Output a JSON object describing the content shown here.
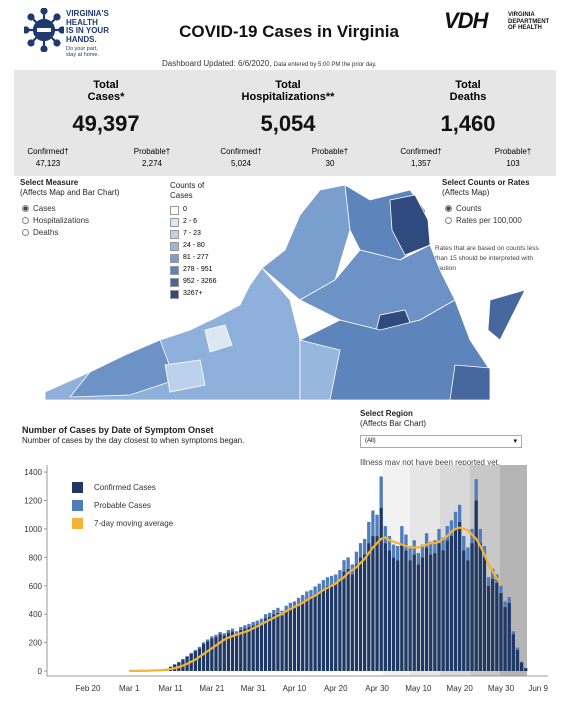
{
  "header": {
    "logo_lines": [
      "VIRGINIA'S",
      "HEALTH",
      "IS IN YOUR",
      "HANDS."
    ],
    "logo_tagline": [
      "Do your part,",
      "stay at home."
    ],
    "title": "COVID-19 Cases in Virginia",
    "vdh_mark": "VDH",
    "vdh_name": [
      "VIRGINIA",
      "DEPARTMENT",
      "OF HEALTH"
    ],
    "updated": "Dashboard Updated: 6/6/2020,",
    "updated_note": "Data entered by 5:00 PM the prior day."
  },
  "stats": [
    {
      "label": [
        "Total",
        "Cases*"
      ],
      "total": "49,397",
      "confirmed_label": "Confirmed†",
      "confirmed": "47,123",
      "probable_label": "Probable†",
      "probable": "2,274"
    },
    {
      "label": [
        "Total",
        "Hospitalizations**"
      ],
      "total": "5,054",
      "confirmed_label": "Confirmed†",
      "confirmed": "5,024",
      "probable_label": "Probable†",
      "probable": "30"
    },
    {
      "label": [
        "Total",
        "Deaths"
      ],
      "total": "1,460",
      "confirmed_label": "Confirmed†",
      "confirmed": "1,357",
      "probable_label": "Probable†",
      "probable": "103"
    }
  ],
  "measure": {
    "title": "Select Measure",
    "subtitle": "(Affects Map and Bar Chart)",
    "options": [
      "Cases",
      "Hospitalizations",
      "Deaths"
    ],
    "selected": 0
  },
  "counts_legend": {
    "title": [
      "Counts of",
      "Cases"
    ],
    "bins": [
      "0",
      "2 - 6",
      "7 - 23",
      "24 - 80",
      "81 - 277",
      "278 - 951",
      "952 - 3266",
      "3267+"
    ],
    "colors": [
      "#ffffff",
      "#dce7f4",
      "#bcd2ec",
      "#98b7de",
      "#7a9fce",
      "#5d84bb",
      "#47689f",
      "#2f4a7c"
    ]
  },
  "rates": {
    "title": "Select Counts or Rates",
    "subtitle": "(Affects Map)",
    "options": [
      "Counts",
      "Rates per 100,000"
    ],
    "selected": 0,
    "note": [
      "Rates that are based on counts less",
      "than 15 should be interpreted with",
      "caution"
    ]
  },
  "region": {
    "title": "Select Region",
    "subtitle": "(Affects Bar Chart)",
    "selected": "(All)",
    "note": "Illness may not have been reported yet."
  },
  "chart_data": {
    "type": "bar",
    "stacked": true,
    "title": "Number of Cases by Date of Symptom Onset",
    "subtitle": "Number of cases by the day closest to when symptoms began.",
    "categories": [
      null,
      null,
      null,
      "Feb 20",
      null,
      null,
      null,
      null,
      null,
      null,
      null,
      null,
      null,
      "Mar 1",
      null,
      null,
      null,
      null,
      null,
      null,
      null,
      null,
      null,
      "Mar 11",
      null,
      null,
      null,
      null,
      null,
      null,
      null,
      null,
      null,
      "Mar 21",
      null,
      null,
      null,
      null,
      null,
      null,
      null,
      null,
      null,
      "Mar 31",
      null,
      null,
      null,
      null,
      null,
      null,
      null,
      null,
      null,
      "Apr 10",
      null,
      null,
      null,
      null,
      null,
      null,
      null,
      null,
      null,
      "Apr 20",
      null,
      null,
      null,
      null,
      null,
      null,
      null,
      null,
      null,
      "Apr 30",
      null,
      null,
      null,
      null,
      null,
      null,
      null,
      null,
      null,
      "May 10",
      null,
      null,
      null,
      null,
      null,
      null,
      null,
      null,
      null,
      "May 20",
      null,
      null,
      null,
      null,
      null,
      null,
      null,
      null,
      null,
      "May 30",
      null,
      null,
      null,
      null,
      null,
      null,
      null,
      null,
      "Jun 9"
    ],
    "series": [
      {
        "name": "Confirmed Cases",
        "color": "#1f3864",
        "values": [
          0,
          0,
          0,
          0,
          0,
          0,
          0,
          0,
          0,
          0,
          0,
          0,
          0,
          1,
          0,
          2,
          1,
          3,
          5,
          4,
          8,
          10,
          15,
          30,
          45,
          60,
          80,
          100,
          120,
          140,
          160,
          190,
          210,
          230,
          240,
          260,
          250,
          270,
          280,
          260,
          290,
          300,
          310,
          320,
          330,
          340,
          370,
          380,
          400,
          410,
          390,
          420,
          440,
          450,
          470,
          490,
          510,
          520,
          540,
          560,
          580,
          600,
          610,
          620,
          640,
          700,
          720,
          680,
          750,
          800,
          820,
          900,
          950,
          950,
          1150,
          900,
          850,
          800,
          780,
          900,
          850,
          780,
          820,
          750,
          800,
          870,
          820,
          830,
          900,
          850,
          920,
          950,
          1000,
          1050,
          850,
          780,
          900,
          1200,
          900,
          800,
          600,
          650,
          620,
          550,
          450,
          480,
          260,
          150,
          60,
          20,
          null,
          null,
          null
        ]
      },
      {
        "name": "Probable Cases",
        "color": "#4f7cba",
        "values": [
          0,
          0,
          0,
          0,
          0,
          0,
          0,
          0,
          0,
          0,
          0,
          0,
          0,
          0,
          0,
          0,
          0,
          0,
          0,
          0,
          1,
          1,
          2,
          2,
          3,
          4,
          5,
          6,
          8,
          8,
          10,
          12,
          12,
          14,
          15,
          15,
          16,
          18,
          18,
          20,
          20,
          22,
          22,
          25,
          25,
          28,
          30,
          30,
          30,
          35,
          35,
          40,
          40,
          40,
          45,
          45,
          50,
          50,
          55,
          55,
          60,
          60,
          60,
          60,
          70,
          80,
          80,
          70,
          90,
          100,
          110,
          150,
          180,
          150,
          220,
          120,
          100,
          90,
          100,
          120,
          110,
          100,
          100,
          80,
          90,
          100,
          90,
          90,
          100,
          90,
          100,
          110,
          120,
          120,
          100,
          90,
          100,
          150,
          100,
          80,
          60,
          70,
          60,
          50,
          40,
          40,
          20,
          15,
          5,
          2,
          null,
          null,
          null
        ]
      },
      {
        "name": "7-day moving average",
        "color": "#f5b335",
        "type": "line",
        "values": [
          null,
          null,
          null,
          null,
          null,
          null,
          null,
          null,
          null,
          null,
          null,
          null,
          null,
          1,
          1,
          1,
          2,
          2,
          3,
          4,
          5,
          6,
          8,
          14,
          20,
          28,
          38,
          50,
          65,
          80,
          100,
          120,
          140,
          160,
          180,
          200,
          220,
          235,
          245,
          255,
          265,
          275,
          285,
          300,
          315,
          330,
          345,
          360,
          375,
          390,
          405,
          420,
          435,
          450,
          465,
          480,
          500,
          515,
          530,
          550,
          570,
          585,
          600,
          615,
          640,
          660,
          690,
          710,
          730,
          760,
          790,
          830,
          870,
          900,
          930,
          940,
          920,
          910,
          900,
          890,
          880,
          870,
          870,
          870,
          880,
          890,
          900,
          900,
          910,
          930,
          950,
          980,
          1000,
          1010,
          1000,
          990,
          960,
          930,
          880,
          820,
          750,
          700,
          650,
          620,
          null,
          null,
          null,
          null,
          null,
          null,
          null,
          null,
          null
        ]
      }
    ],
    "ylim": [
      0,
      1450
    ],
    "yticks": [
      0,
      200,
      400,
      600,
      800,
      1000,
      1200,
      1400
    ],
    "grid": false
  }
}
